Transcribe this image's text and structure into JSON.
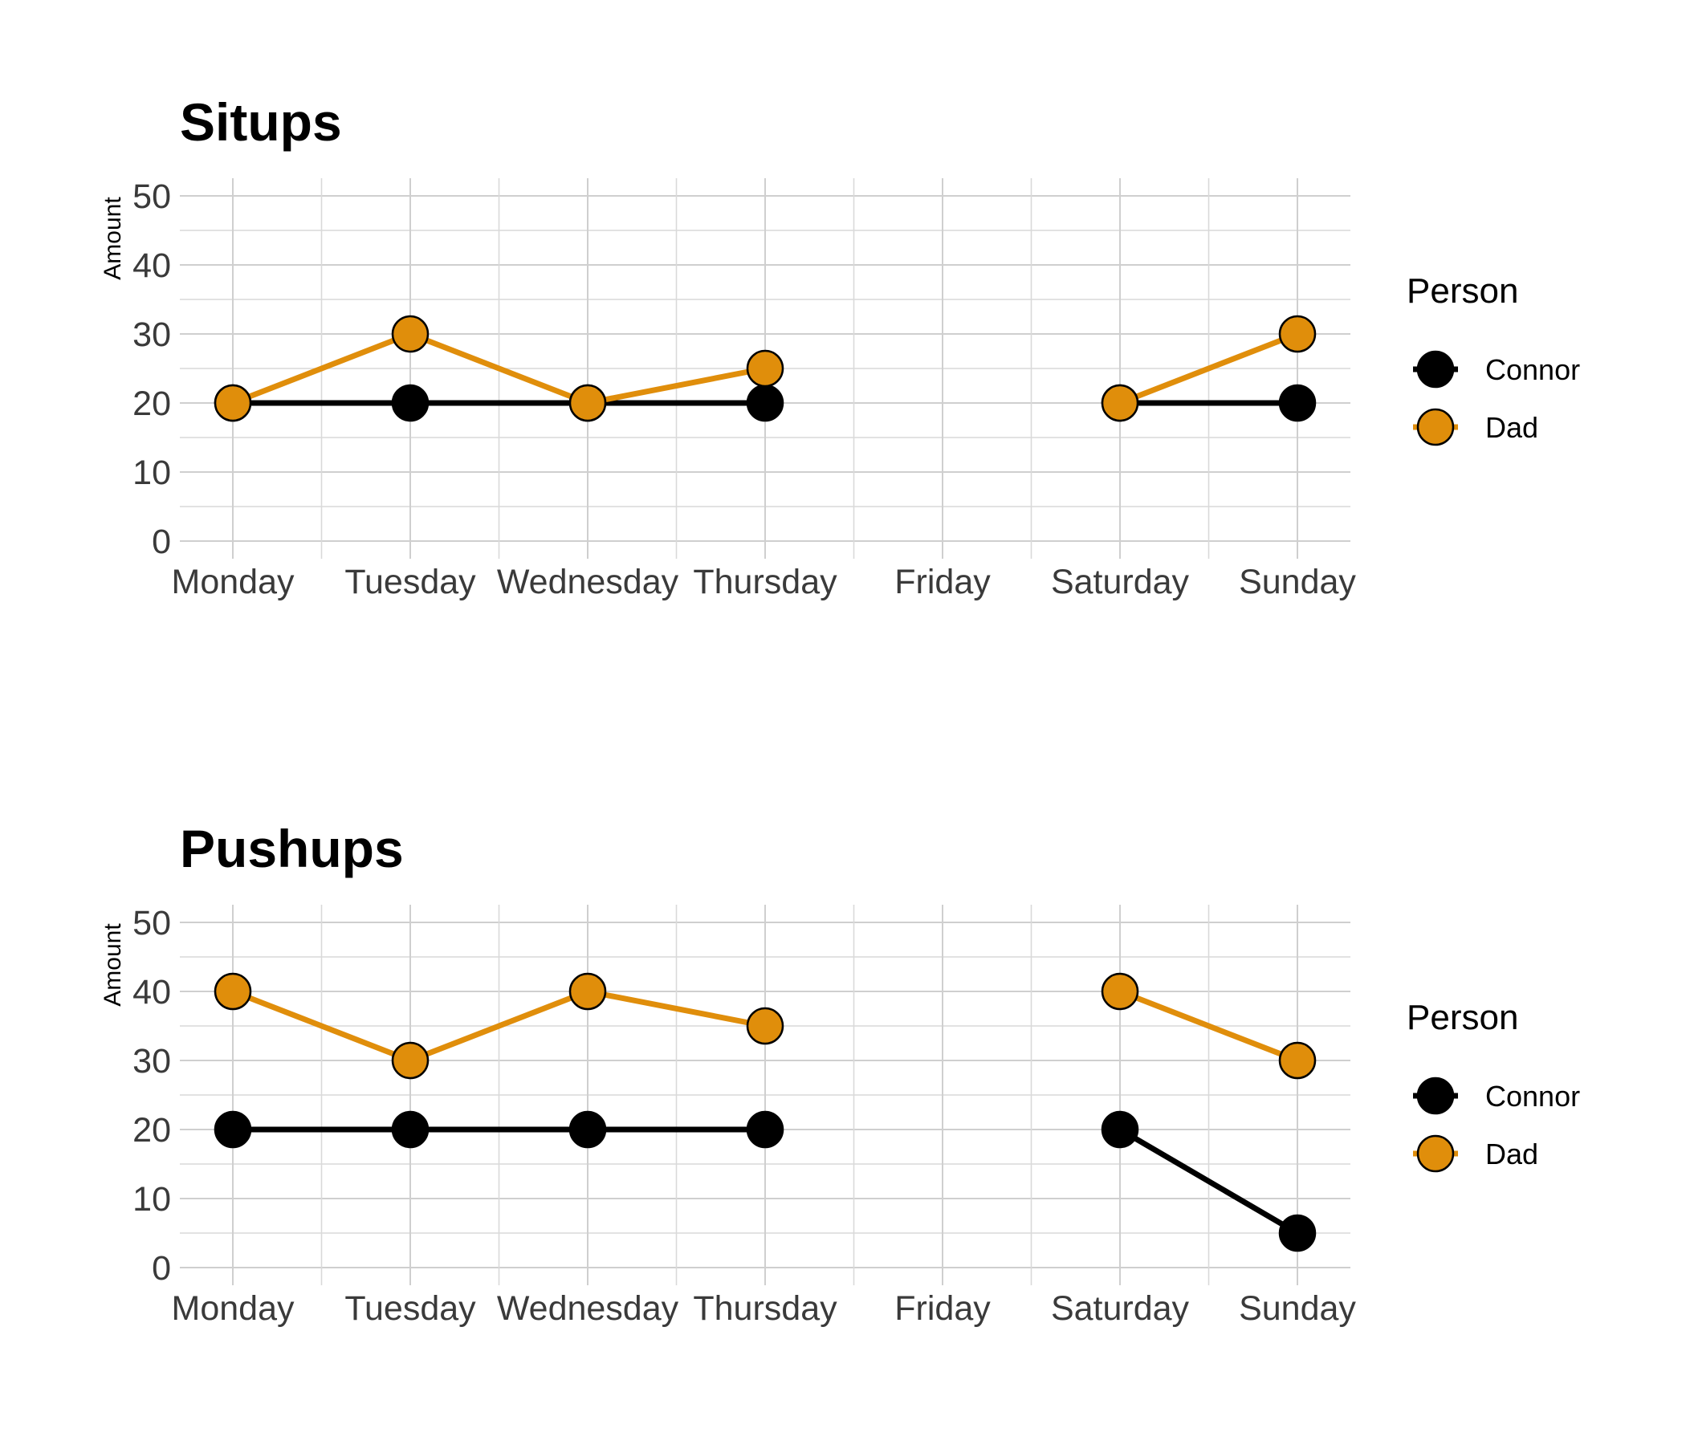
{
  "chart_data": [
    {
      "type": "line",
      "title": "Situps",
      "xlabel": "",
      "ylabel": "Amount",
      "categories": [
        "Monday",
        "Tuesday",
        "Wednesday",
        "Thursday",
        "Friday",
        "Saturday",
        "Sunday"
      ],
      "yticks": [
        "0",
        "10",
        "20",
        "30",
        "40",
        "50"
      ],
      "ylim": [
        0,
        50
      ],
      "grid": true,
      "legend": {
        "title": "Person",
        "position": "right"
      },
      "series": [
        {
          "name": "Connor",
          "color": "#000000",
          "values": [
            20,
            20,
            20,
            20,
            null,
            20,
            20
          ]
        },
        {
          "name": "Dad",
          "color": "#E08E0B",
          "values": [
            20,
            30,
            20,
            25,
            null,
            20,
            30
          ]
        }
      ]
    },
    {
      "type": "line",
      "title": "Pushups",
      "xlabel": "",
      "ylabel": "Amount",
      "categories": [
        "Monday",
        "Tuesday",
        "Wednesday",
        "Thursday",
        "Friday",
        "Saturday",
        "Sunday"
      ],
      "yticks": [
        "0",
        "10",
        "20",
        "30",
        "40",
        "50"
      ],
      "ylim": [
        0,
        50
      ],
      "grid": true,
      "legend": {
        "title": "Person",
        "position": "right"
      },
      "series": [
        {
          "name": "Connor",
          "color": "#000000",
          "values": [
            20,
            20,
            20,
            20,
            null,
            20,
            5
          ]
        },
        {
          "name": "Dad",
          "color": "#E08E0B",
          "values": [
            40,
            30,
            40,
            35,
            null,
            40,
            30
          ]
        }
      ]
    }
  ]
}
